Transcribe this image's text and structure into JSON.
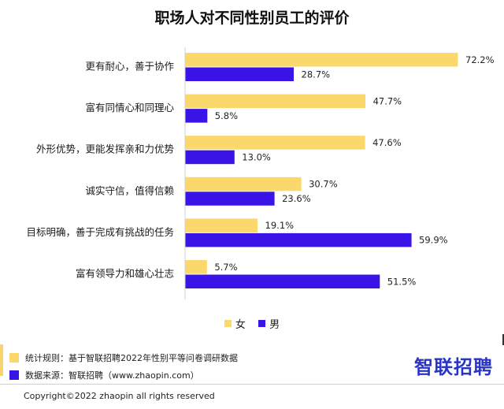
{
  "chart_data": {
    "type": "bar",
    "orientation": "horizontal",
    "title": "职场人对不同性别员工的评价",
    "categories": [
      "更有耐心，善于协作",
      "富有同情心和同理心",
      "外形优势，更能发挥亲和力优势",
      "诚实守信，值得信赖",
      "目标明确，善于完成有挑战的任务",
      "富有领导力和雄心壮志"
    ],
    "series": [
      {
        "name": "女",
        "values": [
          72.2,
          47.7,
          47.6,
          30.7,
          19.1,
          5.7
        ],
        "labels": [
          "72.2%",
          "47.7%",
          "47.6%",
          "30.7%",
          "19.1%",
          "5.7%"
        ],
        "color": "#fbd86b"
      },
      {
        "name": "男",
        "values": [
          28.7,
          5.8,
          13.0,
          23.6,
          59.9,
          51.5
        ],
        "labels": [
          "28.7%",
          "5.8%",
          "13.0%",
          "23.6%",
          "59.9%",
          "51.5%"
        ],
        "color": "#3a13e6"
      }
    ],
    "xlim": [
      0,
      75
    ],
    "legend_position": "bottom",
    "grid": false
  },
  "footer": {
    "rule_text": "统计规则：基于智联招聘2022年性别平等问卷调研数据",
    "source_text": "数据来源：智联招聘（www.zhaopin.com）",
    "rule_color": "#fbd86b",
    "source_color": "#3a13e6",
    "brand": "智联招聘",
    "brand_color": "#2a35c6",
    "copyright": "Copyright©2022 zhaopin all rights reserved"
  }
}
